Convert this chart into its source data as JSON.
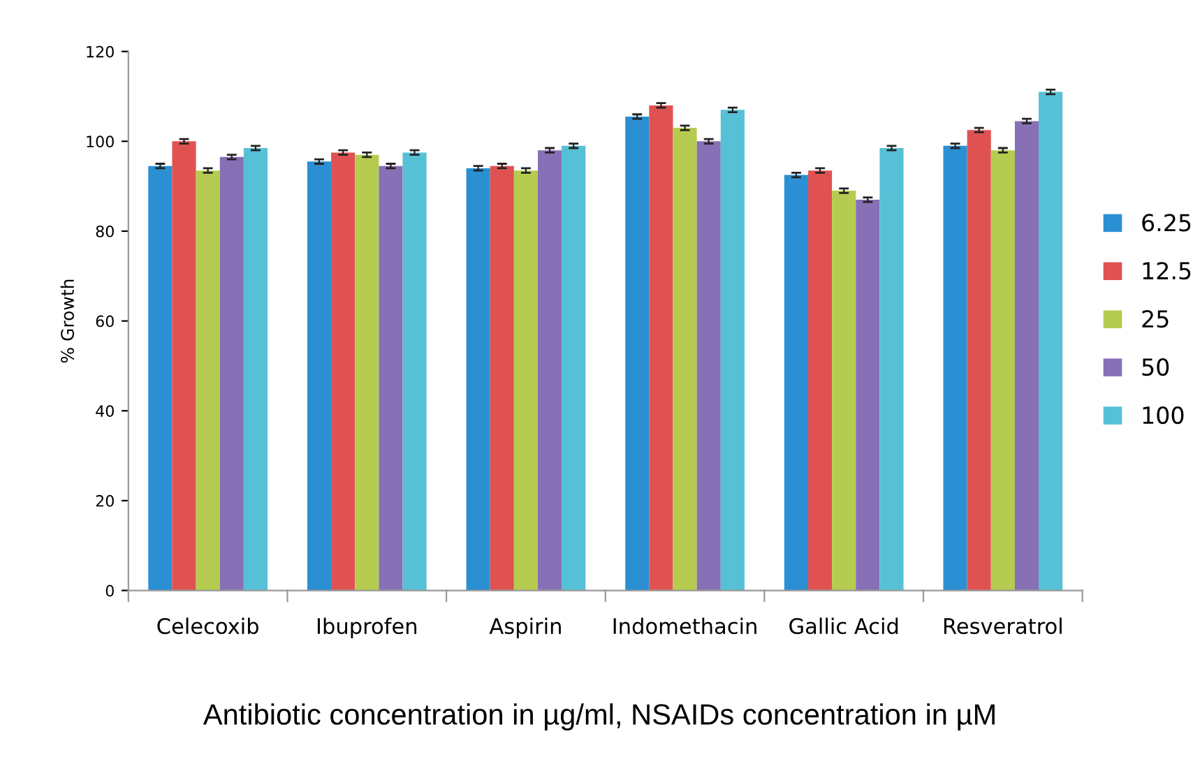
{
  "chart_data": {
    "type": "bar",
    "ylabel": "% Growth",
    "categories": [
      "Celecoxib",
      "Ibuprofen",
      "Aspirin",
      "Indomethacin",
      "Gallic Acid",
      "Resveratrol"
    ],
    "series": [
      {
        "name": "6.25",
        "color": "#2b8fd4",
        "values": [
          94.5,
          95.5,
          94,
          105.5,
          92.5,
          99
        ],
        "errors": [
          0.5,
          0.5,
          0.5,
          0.5,
          0.5,
          0.5
        ]
      },
      {
        "name": "12.5",
        "color": "#e05252",
        "values": [
          100,
          97.5,
          94.5,
          108,
          93.5,
          102.5
        ],
        "errors": [
          0.5,
          0.5,
          0.5,
          0.5,
          0.5,
          0.5
        ]
      },
      {
        "name": "25",
        "color": "#b5cc50",
        "values": [
          93.5,
          97,
          93.5,
          103,
          89,
          98
        ],
        "errors": [
          0.5,
          0.5,
          0.5,
          0.5,
          0.5,
          0.5
        ]
      },
      {
        "name": "50",
        "color": "#8770b5",
        "values": [
          96.5,
          94.5,
          98,
          100,
          87,
          104.5
        ],
        "errors": [
          0.5,
          0.5,
          0.5,
          0.5,
          0.5,
          0.5
        ]
      },
      {
        "name": "100",
        "color": "#56c0d6",
        "values": [
          98.5,
          97.5,
          99,
          107,
          98.5,
          111
        ],
        "errors": [
          0.5,
          0.5,
          0.5,
          0.5,
          0.5,
          0.5
        ]
      }
    ],
    "ylim": [
      0,
      120
    ],
    "yticks": [
      0,
      20,
      40,
      60,
      80,
      100,
      120
    ],
    "grid": false,
    "legend": "right",
    "annotations": [
      "Antibiotic concentration in µg/ml, NSAIDs concentration in µM"
    ]
  }
}
